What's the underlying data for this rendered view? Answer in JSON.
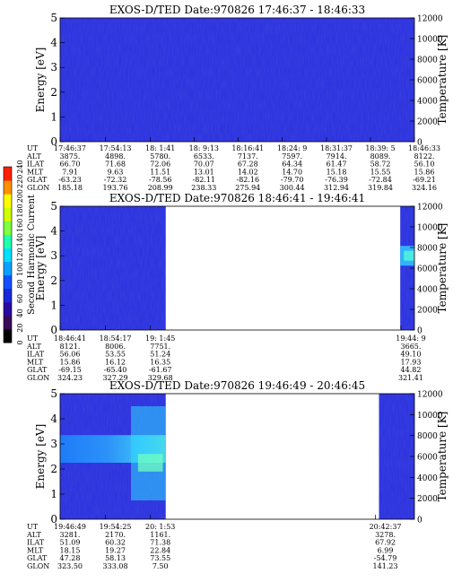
{
  "colorbar": {
    "label": "Second Harmonic Current",
    "ticks": [
      "0",
      "20",
      "40",
      "60",
      "80",
      "100",
      "120",
      "140",
      "160",
      "180",
      "200",
      "220",
      "240"
    ],
    "range": [
      0,
      240
    ],
    "colors": [
      "#000000",
      "#3a0a5a",
      "#2a0aa0",
      "#1828d8",
      "#1450ff",
      "#0aa0ff",
      "#00e0ff",
      "#20ffb0",
      "#80ff40",
      "#d0ff00",
      "#ffff00",
      "#ff9000",
      "#ff2000"
    ]
  },
  "chart_data": [
    {
      "type": "heatmap",
      "title": "EXOS-D/TED   Date:970826  17:46:37 - 18:46:33",
      "ylabel": "Energy [eV]",
      "y2label": "Temperature [K]",
      "ylim": [
        0,
        5
      ],
      "y2lim": [
        0,
        12000
      ],
      "yticks": [
        "0",
        "1",
        "2",
        "3",
        "4",
        "5"
      ],
      "y2ticks": [
        "0",
        "2000",
        "4000",
        "6000",
        "8000",
        "10000",
        "12000"
      ],
      "background": "#2a30e0",
      "data_coverage": [
        [
          0,
          1
        ]
      ],
      "row_labels": [
        "UT",
        "ALT",
        "ILAT",
        "MLT",
        "GLAT",
        "GLON"
      ],
      "columns": [
        {
          "at": 0.0,
          "values": [
            "17:46:37",
            "3875.",
            "66.70",
            "7.91",
            "-63.23",
            "185.18"
          ]
        },
        {
          "at": 0.128,
          "values": [
            "17:54:13",
            "4898.",
            "71.68",
            "9.63",
            "-72.32",
            "193.76"
          ]
        },
        {
          "at": 0.255,
          "values": [
            "18: 1:41",
            "5780.",
            "72.06",
            "11.51",
            "-78.56",
            "208.99"
          ]
        },
        {
          "at": 0.378,
          "values": [
            "18: 9:13",
            "6533.",
            "70.07",
            "13.01",
            "-82.11",
            "238.33"
          ]
        },
        {
          "at": 0.502,
          "values": [
            "18:16:41",
            "7137.",
            "67.28",
            "14.02",
            "-82.16",
            "275.94"
          ]
        },
        {
          "at": 0.627,
          "values": [
            "18:24: 9",
            "7597.",
            "64.34",
            "14.70",
            "-79.70",
            "300.44"
          ]
        },
        {
          "at": 0.752,
          "values": [
            "18:31:37",
            "7914.",
            "61.47",
            "15.18",
            "-76.39",
            "312.94"
          ]
        },
        {
          "at": 0.876,
          "values": [
            "18:39: 5",
            "8089.",
            "58.72",
            "15.55",
            "-72.84",
            "319.84"
          ]
        },
        {
          "at": 1.0,
          "values": [
            "18:46:33",
            "8122.",
            "56.10",
            "15.86",
            "-69.21",
            "324.16"
          ]
        }
      ]
    },
    {
      "type": "heatmap",
      "title": "EXOS-D/TED   Date:970826  18:46:41 - 19:46:41",
      "ylabel": "Energy [eV]",
      "y2label": "Temperature [K]",
      "ylim": [
        0,
        5
      ],
      "y2lim": [
        0,
        12000
      ],
      "yticks": [
        "0",
        "1",
        "2",
        "3",
        "4",
        "5"
      ],
      "y2ticks": [
        "0",
        "2000",
        "4000",
        "6000",
        "8000",
        "10000",
        "12000"
      ],
      "background": "#2a30e0",
      "data_coverage": [
        [
          0,
          0.298
        ],
        [
          0.96,
          1
        ]
      ],
      "row_labels": [
        "UT",
        "ALT",
        "ILAT",
        "MLT",
        "GLAT",
        "GLON"
      ],
      "columns": [
        {
          "at": 0.0,
          "values": [
            "18:46:41",
            "8121.",
            "56.06",
            "15.86",
            "-69.15",
            "324.23"
          ]
        },
        {
          "at": 0.128,
          "values": [
            "18:54:17",
            "8006.",
            "53.55",
            "16.12",
            "-65.40",
            "327.29"
          ]
        },
        {
          "at": 0.255,
          "values": [
            "19: 1:45",
            "7751.",
            "51.24",
            "16.35",
            "-61.67",
            "329.68"
          ]
        },
        {
          "at": 0.962,
          "values": [
            "19:44: 9",
            "3665.",
            "49.10",
            "17.93",
            "44.82",
            "321.41"
          ]
        }
      ]
    },
    {
      "type": "heatmap",
      "title": "EXOS-D/TED   Date:970826  19:46:49 - 20:46:45",
      "ylabel": "Energy [eV]",
      "y2label": "Temperature [K]",
      "ylim": [
        0,
        5
      ],
      "y2lim": [
        0,
        12000
      ],
      "yticks": [
        "0",
        "1",
        "2",
        "3",
        "4",
        "5"
      ],
      "y2ticks": [
        "0",
        "2000",
        "4000",
        "6000",
        "8000",
        "10000",
        "12000"
      ],
      "background": "#2a30e0",
      "data_coverage": [
        [
          0,
          0.298
        ],
        [
          0.9,
          1
        ]
      ],
      "row_labels": [
        "UT",
        "ALT",
        "ILAT",
        "MLT",
        "GLAT",
        "GLON"
      ],
      "columns": [
        {
          "at": 0.0,
          "values": [
            "19:46:49",
            "3281.",
            "51.09",
            "18.15",
            "47.28",
            "323.50"
          ]
        },
        {
          "at": 0.128,
          "values": [
            "19:54:25",
            "2170.",
            "60.32",
            "19.27",
            "58.13",
            "333.08"
          ]
        },
        {
          "at": 0.255,
          "values": [
            "20: 1:53",
            "1161.",
            "71.38",
            "22.84",
            "73.55",
            "7.50"
          ]
        },
        {
          "at": 0.89,
          "values": [
            "20:42:37",
            "3278.",
            "67.92",
            "6.99",
            "-54.79",
            "141.23"
          ]
        }
      ]
    }
  ]
}
